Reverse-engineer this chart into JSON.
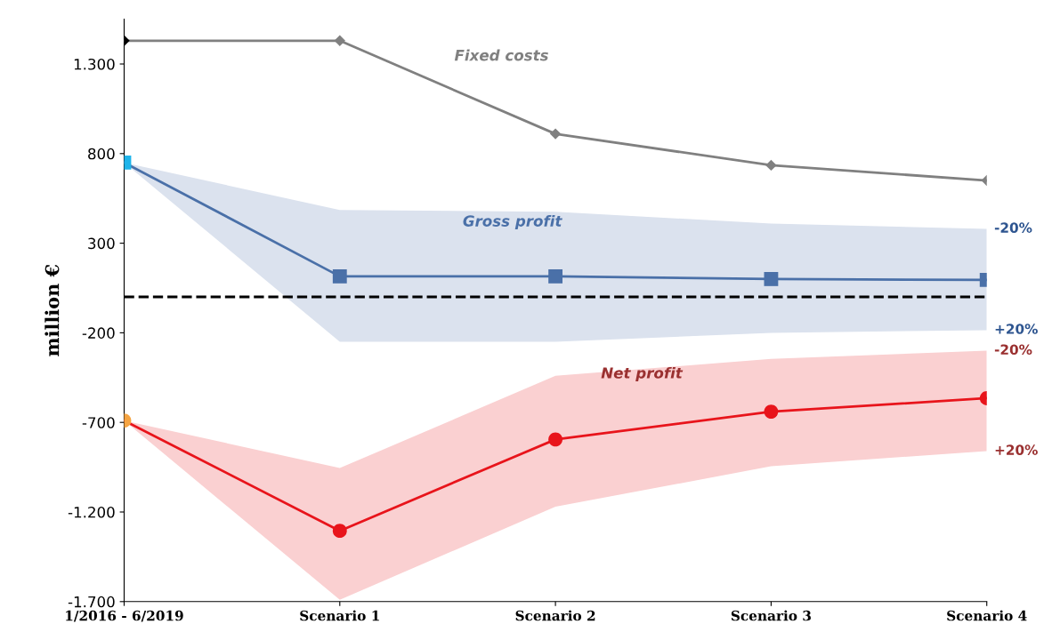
{
  "chart_data": {
    "type": "line",
    "ylabel": "million €",
    "categories": [
      "1/2016 - 6/2019",
      "Scenario 1",
      "Scenario 2",
      "Scenario 3",
      "Scenario 4"
    ],
    "series": [
      {
        "name": "Fixed costs",
        "color": "#808080",
        "colors": [
          "#000000",
          "#808080",
          "#808080",
          "#808080",
          "#808080"
        ],
        "marker": "diamond",
        "values": [
          1430,
          1430,
          910,
          735,
          650
        ]
      },
      {
        "name": "Gross profit",
        "color": "#4a70a8",
        "colors": [
          "#1eb4ea",
          "#4a70a8",
          "#4a70a8",
          "#4a70a8",
          "#4a70a8"
        ],
        "marker": "square",
        "values": [
          750,
          115,
          115,
          100,
          95
        ],
        "lower": [
          750,
          -250,
          -250,
          -200,
          -185
        ],
        "upper": [
          750,
          485,
          475,
          410,
          380
        ]
      },
      {
        "name": "Net profit",
        "color": "#e8141b",
        "colors": [
          "#f5a442",
          "#e8141b",
          "#e8141b",
          "#e8141b",
          "#e8141b"
        ],
        "marker": "circle",
        "values": [
          -690,
          -1305,
          -795,
          -640,
          -565
        ],
        "lower": [
          -690,
          -1690,
          -1170,
          -945,
          -860
        ],
        "upper": [
          -690,
          -955,
          -440,
          -345,
          -300
        ]
      }
    ],
    "ref_lines": [
      {
        "axis": "y",
        "value": 0,
        "color": "#000000",
        "line_style": "dashed"
      }
    ],
    "annotations": [
      {
        "text": "-20%",
        "x": "Scenario 4",
        "y": 380
      },
      {
        "text": "+20%",
        "x": "Scenario 4",
        "y": -185
      },
      {
        "text": "-20%",
        "x": "Scenario 4",
        "y": -300
      },
      {
        "text": "+20%",
        "x": "Scenario 4",
        "y": -860
      }
    ],
    "ylim": [
      -1700,
      1550
    ],
    "yticks": [
      {
        "value": -1700,
        "label": "-1.700"
      },
      {
        "value": -1200,
        "label": "-1.200"
      },
      {
        "value": -700,
        "label": "-700"
      },
      {
        "value": -200,
        "label": "-200"
      },
      {
        "value": 300,
        "label": "300"
      },
      {
        "value": 800,
        "label": "800"
      },
      {
        "value": 1300,
        "label": "1.300"
      }
    ],
    "grid": false,
    "legend": false
  }
}
